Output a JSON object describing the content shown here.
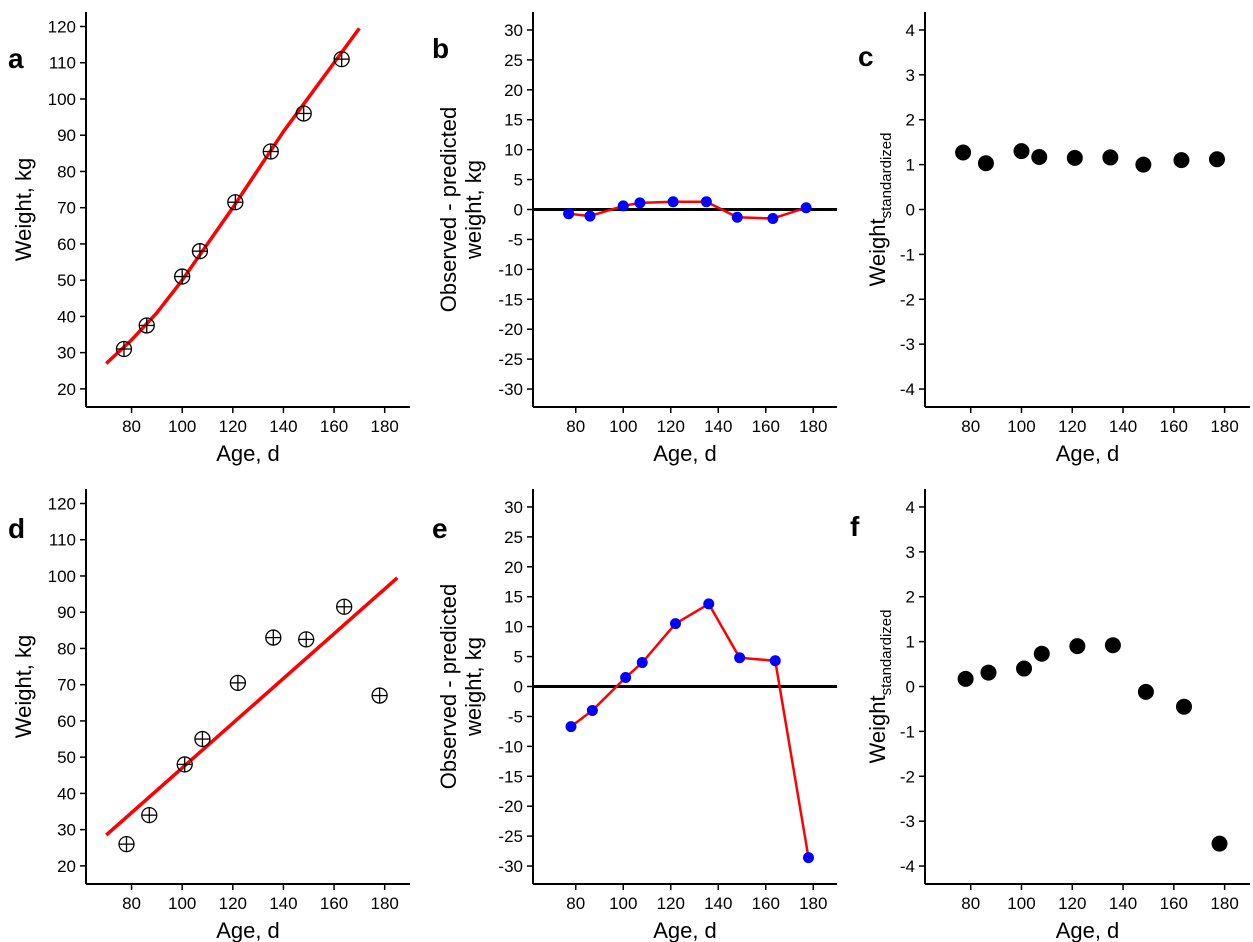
{
  "colors": {
    "fit_line": "#ff0000",
    "residual_point": "#0000ff",
    "point": "#000000",
    "axis": "#000000"
  },
  "chart_data": [
    {
      "type": "scatter",
      "panel": "a",
      "xlabel": "Age, d",
      "ylabel": "Weight, kg",
      "xlim": [
        62,
        190
      ],
      "ylim": [
        15,
        124
      ],
      "xticks": [
        80,
        100,
        120,
        140,
        160,
        180
      ],
      "yticks": [
        20,
        30,
        40,
        50,
        60,
        70,
        80,
        90,
        100,
        110,
        120
      ],
      "marker": "circle-plus",
      "points": {
        "x": [
          77,
          86,
          100,
          107,
          121,
          135,
          148,
          163
        ],
        "y": [
          31,
          37.5,
          51,
          58,
          71.5,
          85.5,
          96,
          111
        ]
      },
      "fit_line": {
        "x": [
          70,
          80,
          90,
          100,
          110,
          120,
          130,
          140,
          150,
          160,
          170
        ],
        "y": [
          27,
          33.5,
          41,
          50,
          60,
          70,
          80.5,
          91,
          100.5,
          110,
          119.5
        ]
      }
    },
    {
      "type": "line",
      "panel": "b",
      "xlabel": "Age, d",
      "ylabel_lines": [
        "Observed - predicted",
        "weight, kg"
      ],
      "xlim": [
        62,
        190
      ],
      "ylim": [
        -33,
        33
      ],
      "xticks": [
        80,
        100,
        120,
        140,
        160,
        180
      ],
      "yticks": [
        -30,
        -25,
        -20,
        -15,
        -10,
        -5,
        0,
        5,
        10,
        15,
        20,
        25,
        30
      ],
      "reference_line": 0,
      "x": [
        77,
        86,
        100,
        107,
        121,
        135,
        148,
        163,
        177
      ],
      "y": [
        -0.7,
        -1.1,
        0.6,
        1.1,
        1.3,
        1.3,
        -1.3,
        -1.5,
        0.3
      ]
    },
    {
      "type": "scatter",
      "panel": "c",
      "xlabel": "Age, d",
      "ylabel_main": "Weight",
      "ylabel_sub": "standardized",
      "xlim": [
        62,
        190
      ],
      "ylim": [
        -4.4,
        4.4
      ],
      "xticks": [
        80,
        100,
        120,
        140,
        160,
        180
      ],
      "yticks": [
        -4,
        -3,
        -2,
        -1,
        0,
        1,
        2,
        3,
        4
      ],
      "x": [
        77,
        86,
        100,
        107,
        121,
        135,
        148,
        163,
        177
      ],
      "y": [
        1.27,
        1.03,
        1.3,
        1.17,
        1.15,
        1.16,
        1.0,
        1.1,
        1.12
      ]
    },
    {
      "type": "scatter",
      "panel": "d",
      "xlabel": "Age, d",
      "ylabel": "Weight, kg",
      "xlim": [
        62,
        190
      ],
      "ylim": [
        15,
        124
      ],
      "xticks": [
        80,
        100,
        120,
        140,
        160,
        180
      ],
      "yticks": [
        20,
        30,
        40,
        50,
        60,
        70,
        80,
        90,
        100,
        110,
        120
      ],
      "marker": "circle-plus",
      "points": {
        "x": [
          78,
          87,
          101,
          108,
          122,
          136,
          149,
          164,
          178
        ],
        "y": [
          26,
          34,
          48,
          55,
          70.5,
          83,
          82.5,
          91.5,
          67
        ]
      },
      "fit_line": {
        "x": [
          70,
          185
        ],
        "y": [
          28.5,
          99.5
        ]
      }
    },
    {
      "type": "line",
      "panel": "e",
      "xlabel": "Age, d",
      "ylabel_lines": [
        "Observed - predicted",
        "weight, kg"
      ],
      "xlim": [
        62,
        190
      ],
      "ylim": [
        -33,
        33
      ],
      "xticks": [
        80,
        100,
        120,
        140,
        160,
        180
      ],
      "yticks": [
        -30,
        -25,
        -20,
        -15,
        -10,
        -5,
        0,
        5,
        10,
        15,
        20,
        25,
        30
      ],
      "reference_line": 0,
      "x": [
        78,
        87,
        101,
        108,
        122,
        136,
        149,
        164,
        178
      ],
      "y": [
        -6.7,
        -4.0,
        1.5,
        4.0,
        10.5,
        13.8,
        4.8,
        4.3,
        -28.6
      ]
    },
    {
      "type": "scatter",
      "panel": "f",
      "xlabel": "Age, d",
      "ylabel_main": "Weight",
      "ylabel_sub": "standardized",
      "xlim": [
        62,
        190
      ],
      "ylim": [
        -4.4,
        4.4
      ],
      "xticks": [
        80,
        100,
        120,
        140,
        160,
        180
      ],
      "yticks": [
        -4,
        -3,
        -2,
        -1,
        0,
        1,
        2,
        3,
        4
      ],
      "x": [
        78,
        87,
        101,
        108,
        122,
        136,
        149,
        164,
        178
      ],
      "y": [
        0.17,
        0.31,
        0.4,
        0.73,
        0.9,
        0.92,
        -0.12,
        -0.45,
        -3.5
      ]
    }
  ]
}
